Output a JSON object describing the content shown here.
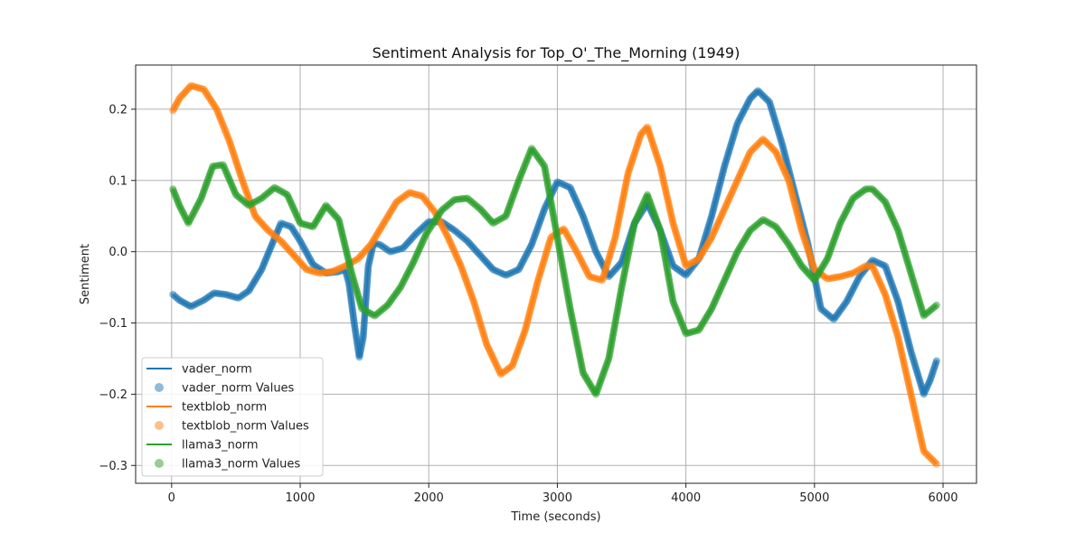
{
  "chart_data": {
    "type": "line",
    "title": "Sentiment Analysis for Top_O'_The_Morning (1949)",
    "xlabel": "Time (seconds)",
    "ylabel": "Sentiment",
    "xlim": [
      -280,
      6260
    ],
    "ylim": [
      -0.325,
      0.262
    ],
    "xticks": [
      0,
      1000,
      2000,
      3000,
      4000,
      5000,
      6000
    ],
    "xtick_labels": [
      "0",
      "1000",
      "2000",
      "3000",
      "4000",
      "5000",
      "6000"
    ],
    "yticks": [
      -0.3,
      -0.2,
      -0.1,
      0.0,
      0.1,
      0.2
    ],
    "ytick_labels": [
      "−0.3",
      "−0.2",
      "−0.1",
      "0.0",
      "0.1",
      "0.2"
    ],
    "grid": true,
    "legend_position": "lower-left",
    "series": [
      {
        "name": "vader_norm",
        "marker_label": "vader_norm Values",
        "color": "#1f77b4",
        "points": [
          [
            10,
            -0.06
          ],
          [
            60,
            -0.068
          ],
          [
            150,
            -0.077
          ],
          [
            250,
            -0.068
          ],
          [
            330,
            -0.058
          ],
          [
            420,
            -0.06
          ],
          [
            520,
            -0.065
          ],
          [
            600,
            -0.055
          ],
          [
            700,
            -0.025
          ],
          [
            780,
            0.01
          ],
          [
            850,
            0.04
          ],
          [
            930,
            0.035
          ],
          [
            1000,
            0.015
          ],
          [
            1100,
            -0.018
          ],
          [
            1200,
            -0.03
          ],
          [
            1300,
            -0.028
          ],
          [
            1350,
            -0.025
          ],
          [
            1380,
            -0.045
          ],
          [
            1420,
            -0.1
          ],
          [
            1460,
            -0.148
          ],
          [
            1490,
            -0.12
          ],
          [
            1530,
            -0.02
          ],
          [
            1570,
            0.012
          ],
          [
            1620,
            0.01
          ],
          [
            1700,
            0.0
          ],
          [
            1800,
            0.005
          ],
          [
            1900,
            0.025
          ],
          [
            2000,
            0.042
          ],
          [
            2100,
            0.042
          ],
          [
            2200,
            0.03
          ],
          [
            2300,
            0.015
          ],
          [
            2400,
            -0.005
          ],
          [
            2500,
            -0.025
          ],
          [
            2600,
            -0.033
          ],
          [
            2700,
            -0.025
          ],
          [
            2800,
            0.01
          ],
          [
            2900,
            0.06
          ],
          [
            3000,
            0.098
          ],
          [
            3100,
            0.09
          ],
          [
            3200,
            0.05
          ],
          [
            3300,
            0.0
          ],
          [
            3400,
            -0.035
          ],
          [
            3500,
            -0.015
          ],
          [
            3600,
            0.04
          ],
          [
            3700,
            0.068
          ],
          [
            3800,
            0.03
          ],
          [
            3900,
            -0.02
          ],
          [
            4000,
            -0.033
          ],
          [
            4100,
            -0.01
          ],
          [
            4200,
            0.05
          ],
          [
            4300,
            0.12
          ],
          [
            4400,
            0.18
          ],
          [
            4500,
            0.215
          ],
          [
            4560,
            0.226
          ],
          [
            4650,
            0.21
          ],
          [
            4750,
            0.15
          ],
          [
            4850,
            0.08
          ],
          [
            4950,
            0.01
          ],
          [
            5050,
            -0.08
          ],
          [
            5150,
            -0.095
          ],
          [
            5250,
            -0.07
          ],
          [
            5350,
            -0.035
          ],
          [
            5450,
            -0.012
          ],
          [
            5550,
            -0.02
          ],
          [
            5650,
            -0.07
          ],
          [
            5750,
            -0.14
          ],
          [
            5850,
            -0.2
          ],
          [
            5900,
            -0.18
          ],
          [
            5950,
            -0.153
          ]
        ]
      },
      {
        "name": "textblob_norm",
        "marker_label": "textblob_norm Values",
        "color": "#ff7f0e",
        "points": [
          [
            10,
            0.198
          ],
          [
            60,
            0.215
          ],
          [
            150,
            0.233
          ],
          [
            250,
            0.228
          ],
          [
            350,
            0.2
          ],
          [
            450,
            0.155
          ],
          [
            550,
            0.1
          ],
          [
            650,
            0.05
          ],
          [
            750,
            0.03
          ],
          [
            850,
            0.015
          ],
          [
            950,
            -0.005
          ],
          [
            1050,
            -0.025
          ],
          [
            1150,
            -0.03
          ],
          [
            1250,
            -0.028
          ],
          [
            1350,
            -0.02
          ],
          [
            1450,
            -0.01
          ],
          [
            1550,
            0.01
          ],
          [
            1650,
            0.04
          ],
          [
            1750,
            0.07
          ],
          [
            1850,
            0.083
          ],
          [
            1950,
            0.078
          ],
          [
            2050,
            0.055
          ],
          [
            2150,
            0.02
          ],
          [
            2250,
            -0.02
          ],
          [
            2350,
            -0.07
          ],
          [
            2450,
            -0.13
          ],
          [
            2560,
            -0.172
          ],
          [
            2650,
            -0.16
          ],
          [
            2750,
            -0.11
          ],
          [
            2850,
            -0.04
          ],
          [
            2950,
            0.02
          ],
          [
            3050,
            0.032
          ],
          [
            3150,
            0.0
          ],
          [
            3250,
            -0.035
          ],
          [
            3350,
            -0.04
          ],
          [
            3450,
            0.02
          ],
          [
            3550,
            0.11
          ],
          [
            3650,
            0.165
          ],
          [
            3700,
            0.175
          ],
          [
            3800,
            0.12
          ],
          [
            3900,
            0.04
          ],
          [
            4000,
            -0.02
          ],
          [
            4100,
            -0.01
          ],
          [
            4200,
            0.02
          ],
          [
            4300,
            0.06
          ],
          [
            4400,
            0.1
          ],
          [
            4500,
            0.14
          ],
          [
            4600,
            0.158
          ],
          [
            4700,
            0.14
          ],
          [
            4800,
            0.1
          ],
          [
            4900,
            0.03
          ],
          [
            5000,
            -0.025
          ],
          [
            5100,
            -0.038
          ],
          [
            5200,
            -0.035
          ],
          [
            5300,
            -0.03
          ],
          [
            5400,
            -0.02
          ],
          [
            5450,
            -0.02
          ],
          [
            5550,
            -0.06
          ],
          [
            5650,
            -0.12
          ],
          [
            5750,
            -0.2
          ],
          [
            5850,
            -0.28
          ],
          [
            5950,
            -0.298
          ]
        ]
      },
      {
        "name": "llama3_norm",
        "marker_label": "llama3_norm Values",
        "color": "#2ca02c",
        "points": [
          [
            10,
            0.088
          ],
          [
            60,
            0.065
          ],
          [
            130,
            0.04
          ],
          [
            230,
            0.075
          ],
          [
            320,
            0.12
          ],
          [
            400,
            0.122
          ],
          [
            500,
            0.08
          ],
          [
            600,
            0.065
          ],
          [
            700,
            0.075
          ],
          [
            800,
            0.09
          ],
          [
            900,
            0.08
          ],
          [
            1000,
            0.04
          ],
          [
            1100,
            0.035
          ],
          [
            1200,
            0.065
          ],
          [
            1300,
            0.045
          ],
          [
            1400,
            -0.03
          ],
          [
            1480,
            -0.08
          ],
          [
            1580,
            -0.09
          ],
          [
            1680,
            -0.075
          ],
          [
            1780,
            -0.05
          ],
          [
            1880,
            -0.015
          ],
          [
            1980,
            0.025
          ],
          [
            2100,
            0.058
          ],
          [
            2200,
            0.073
          ],
          [
            2300,
            0.075
          ],
          [
            2400,
            0.06
          ],
          [
            2500,
            0.04
          ],
          [
            2600,
            0.05
          ],
          [
            2700,
            0.1
          ],
          [
            2800,
            0.145
          ],
          [
            2900,
            0.12
          ],
          [
            3000,
            0.02
          ],
          [
            3100,
            -0.08
          ],
          [
            3200,
            -0.17
          ],
          [
            3300,
            -0.2
          ],
          [
            3400,
            -0.15
          ],
          [
            3500,
            -0.05
          ],
          [
            3600,
            0.04
          ],
          [
            3700,
            0.08
          ],
          [
            3800,
            0.03
          ],
          [
            3900,
            -0.07
          ],
          [
            4000,
            -0.115
          ],
          [
            4100,
            -0.11
          ],
          [
            4200,
            -0.08
          ],
          [
            4300,
            -0.04
          ],
          [
            4400,
            0.0
          ],
          [
            4500,
            0.03
          ],
          [
            4600,
            0.045
          ],
          [
            4700,
            0.035
          ],
          [
            4800,
            0.01
          ],
          [
            4900,
            -0.02
          ],
          [
            5000,
            -0.04
          ],
          [
            5100,
            -0.01
          ],
          [
            5200,
            0.04
          ],
          [
            5300,
            0.075
          ],
          [
            5400,
            0.088
          ],
          [
            5450,
            0.088
          ],
          [
            5550,
            0.07
          ],
          [
            5650,
            0.03
          ],
          [
            5750,
            -0.03
          ],
          [
            5850,
            -0.09
          ],
          [
            5950,
            -0.075
          ]
        ]
      }
    ]
  }
}
